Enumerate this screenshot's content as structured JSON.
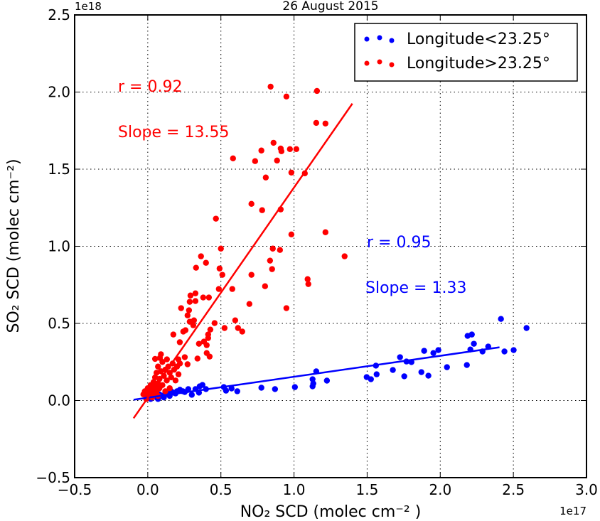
{
  "chart_data": {
    "type": "scatter",
    "title": "26 August 2015",
    "xlabel": "NO₂ SCD (molec cm⁻² )",
    "ylabel": "SO₂ SCD (molec cm⁻²)",
    "x_offset_label": "1e17",
    "y_offset_label": "1e18",
    "xlim": [
      -0.5,
      3.0
    ],
    "ylim": [
      -0.5,
      2.5
    ],
    "xticks": [
      -0.5,
      0.0,
      0.5,
      1.0,
      1.5,
      2.0,
      2.5,
      3.0
    ],
    "xtick_labels": [
      "−0.5",
      "0.0",
      "0.5",
      "1.0",
      "1.5",
      "2.0",
      "2.5",
      "3.0"
    ],
    "yticks": [
      -0.5,
      0.0,
      0.5,
      1.0,
      1.5,
      2.0,
      2.5
    ],
    "ytick_labels": [
      "−0.5",
      "0.0",
      "0.5",
      "1.0",
      "1.5",
      "2.0",
      "2.5"
    ],
    "grid": true,
    "legend_placement": "top-right",
    "series": [
      {
        "name": "Longitude<23.25°",
        "color": "#0000ff",
        "r_label": "r = 0.95",
        "slope_label": "Slope = 1.33",
        "fit_line": [
          [
            -0.097,
            0.005
          ],
          [
            2.405,
            0.345
          ]
        ],
        "points": [
          [
            1.152,
            0.189
          ],
          [
            1.127,
            0.138
          ],
          [
            1.132,
            0.11
          ],
          [
            1.127,
            0.092
          ],
          [
            1.225,
            0.129
          ],
          [
            1.497,
            0.152
          ],
          [
            1.526,
            0.138
          ],
          [
            1.56,
            0.226
          ],
          [
            1.565,
            0.17
          ],
          [
            1.676,
            0.198
          ],
          [
            1.725,
            0.281
          ],
          [
            1.754,
            0.157
          ],
          [
            1.769,
            0.253
          ],
          [
            1.803,
            0.249
          ],
          [
            1.871,
            0.184
          ],
          [
            1.89,
            0.322
          ],
          [
            1.919,
            0.161
          ],
          [
            1.953,
            0.308
          ],
          [
            1.987,
            0.327
          ],
          [
            2.046,
            0.216
          ],
          [
            2.182,
            0.23
          ],
          [
            2.187,
            0.419
          ],
          [
            2.216,
            0.428
          ],
          [
            2.23,
            0.368
          ],
          [
            2.206,
            0.331
          ],
          [
            2.289,
            0.318
          ],
          [
            2.328,
            0.35
          ],
          [
            2.415,
            0.529
          ],
          [
            2.439,
            0.318
          ],
          [
            2.502,
            0.327
          ],
          [
            2.59,
            0.47
          ],
          [
            1.006,
            0.087
          ],
          [
            0.87,
            0.074
          ],
          [
            0.777,
            0.083
          ],
          [
            0.612,
            0.06
          ],
          [
            0.573,
            0.078
          ],
          [
            0.52,
            0.087
          ],
          [
            0.535,
            0.064
          ],
          [
            0.398,
            0.074
          ],
          [
            0.374,
            0.101
          ],
          [
            0.355,
            0.092
          ],
          [
            0.35,
            0.051
          ],
          [
            0.326,
            0.074
          ],
          [
            0.301,
            0.037
          ],
          [
            0.277,
            0.074
          ],
          [
            0.253,
            0.055
          ],
          [
            0.219,
            0.064
          ],
          [
            0.19,
            0.046
          ],
          [
            0.0,
            0.02
          ],
          [
            0.02,
            0.01
          ],
          [
            0.04,
            0.03
          ],
          [
            0.06,
            0.02
          ],
          [
            0.08,
            0.04
          ],
          [
            0.1,
            0.03
          ],
          [
            0.12,
            0.05
          ],
          [
            0.14,
            0.04
          ],
          [
            0.16,
            0.06
          ],
          [
            0.18,
            0.05
          ],
          [
            0.2,
            0.06
          ],
          [
            0.22,
            0.07
          ],
          [
            0.24,
            0.06
          ],
          [
            0.07,
            0.01
          ],
          [
            0.11,
            0.02
          ],
          [
            0.15,
            0.03
          ]
        ]
      },
      {
        "name": "Longitude>23.25°",
        "color": "#ff0000",
        "r_label": "r = 0.92",
        "slope_label": "Slope = 13.55",
        "fit_line": [
          [
            -0.097,
            -0.115
          ],
          [
            1.399,
            1.925
          ]
        ],
        "points": [
          [
            0.84,
            2.035
          ],
          [
            1.157,
            2.007
          ],
          [
            0.948,
            1.971
          ],
          [
            1.152,
            1.8
          ],
          [
            1.215,
            1.796
          ],
          [
            0.86,
            1.671
          ],
          [
            0.777,
            1.621
          ],
          [
            0.909,
            1.634
          ],
          [
            0.914,
            1.616
          ],
          [
            0.972,
            1.63
          ],
          [
            1.016,
            1.63
          ],
          [
            0.583,
            1.57
          ],
          [
            0.734,
            1.552
          ],
          [
            0.884,
            1.556
          ],
          [
            0.807,
            1.446
          ],
          [
            0.982,
            1.478
          ],
          [
            1.074,
            1.473
          ],
          [
            0.709,
            1.275
          ],
          [
            0.782,
            1.234
          ],
          [
            0.909,
            1.239
          ],
          [
            0.466,
            1.179
          ],
          [
            0.982,
            1.077
          ],
          [
            1.215,
            1.091
          ],
          [
            1.346,
            0.935
          ],
          [
            0.364,
            0.935
          ],
          [
            0.33,
            0.861
          ],
          [
            0.398,
            0.893
          ],
          [
            0.491,
            0.856
          ],
          [
            0.51,
            0.815
          ],
          [
            0.5,
            0.985
          ],
          [
            0.709,
            0.815
          ],
          [
            0.578,
            0.723
          ],
          [
            0.486,
            0.723
          ],
          [
            0.695,
            0.626
          ],
          [
            0.855,
            0.985
          ],
          [
            0.904,
            0.976
          ],
          [
            0.836,
            0.907
          ],
          [
            0.85,
            0.852
          ],
          [
            0.802,
            0.741
          ],
          [
            1.093,
            0.787
          ],
          [
            1.098,
            0.755
          ],
          [
            0.948,
            0.599
          ],
          [
            0.598,
            0.52
          ],
          [
            0.525,
            0.47
          ],
          [
            0.617,
            0.47
          ],
          [
            0.646,
            0.447
          ],
          [
            0.457,
            0.502
          ],
          [
            0.292,
            0.681
          ],
          [
            0.326,
            0.695
          ],
          [
            0.379,
            0.668
          ],
          [
            0.418,
            0.668
          ],
          [
            0.287,
            0.64
          ],
          [
            0.326,
            0.645
          ],
          [
            0.228,
            0.599
          ],
          [
            0.282,
            0.585
          ],
          [
            0.272,
            0.552
          ],
          [
            0.287,
            0.511
          ],
          [
            0.316,
            0.52
          ],
          [
            0.311,
            0.488
          ],
          [
            0.258,
            0.456
          ],
          [
            0.243,
            0.447
          ],
          [
            0.175,
            0.428
          ],
          [
            0.219,
            0.378
          ],
          [
            0.35,
            0.368
          ],
          [
            0.384,
            0.382
          ],
          [
            0.403,
            0.359
          ],
          [
            0.413,
            0.428
          ],
          [
            0.413,
            0.405
          ],
          [
            0.428,
            0.46
          ],
          [
            0.403,
            0.308
          ],
          [
            0.423,
            0.285
          ],
          [
            0.34,
            0.272
          ],
          [
            0.253,
            0.281
          ],
          [
            0.209,
            0.267
          ],
          [
            0.272,
            0.235
          ],
          [
            0.083,
            0.276
          ],
          [
            0.131,
            0.267
          ],
          [
            -0.03,
            0.04
          ],
          [
            -0.02,
            0.06
          ],
          [
            0.0,
            0.03
          ],
          [
            0.0,
            0.08
          ],
          [
            0.01,
            0.05
          ],
          [
            0.02,
            0.1
          ],
          [
            0.02,
            0.03
          ],
          [
            0.03,
            0.07
          ],
          [
            0.04,
            0.12
          ],
          [
            0.04,
            0.04
          ],
          [
            0.05,
            0.09
          ],
          [
            0.05,
            0.15
          ],
          [
            0.06,
            0.06
          ],
          [
            0.06,
            0.18
          ],
          [
            0.07,
            0.11
          ],
          [
            0.07,
            0.22
          ],
          [
            0.08,
            0.08
          ],
          [
            0.08,
            0.14
          ],
          [
            0.09,
            0.19
          ],
          [
            0.1,
            0.1
          ],
          [
            0.1,
            0.25
          ],
          [
            0.11,
            0.16
          ],
          [
            0.12,
            0.2
          ],
          [
            0.12,
            0.06
          ],
          [
            0.13,
            0.13
          ],
          [
            0.14,
            0.22
          ],
          [
            0.15,
            0.18
          ],
          [
            0.15,
            0.08
          ],
          [
            0.16,
            0.15
          ],
          [
            0.17,
            0.24
          ],
          [
            0.18,
            0.2
          ],
          [
            0.19,
            0.13
          ],
          [
            0.2,
            0.22
          ],
          [
            0.21,
            0.17
          ],
          [
            0.22,
            0.24
          ],
          [
            0.05,
            0.27
          ],
          [
            0.09,
            0.3
          ],
          [
            -0.01,
            0.01
          ],
          [
            0.03,
            0.02
          ],
          [
            0.07,
            0.03
          ]
        ]
      }
    ]
  }
}
